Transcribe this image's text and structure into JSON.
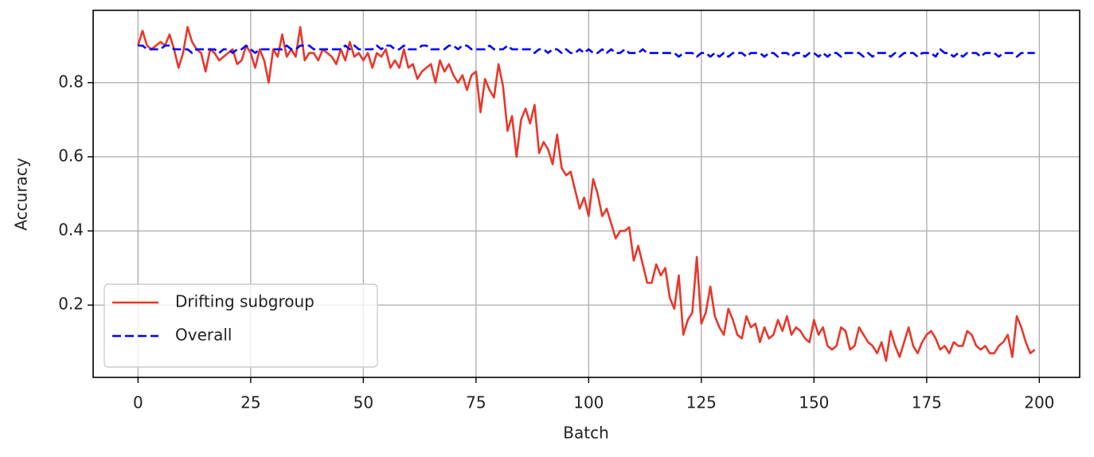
{
  "chart_data": {
    "type": "line",
    "xlabel": "Batch",
    "ylabel": "Accuracy",
    "x": [
      0,
      1,
      2,
      3,
      4,
      5,
      6,
      7,
      8,
      9,
      10,
      11,
      12,
      13,
      14,
      15,
      16,
      17,
      18,
      19,
      20,
      21,
      22,
      23,
      24,
      25,
      26,
      27,
      28,
      29,
      30,
      31,
      32,
      33,
      34,
      35,
      36,
      37,
      38,
      39,
      40,
      41,
      42,
      43,
      44,
      45,
      46,
      47,
      48,
      49,
      50,
      51,
      52,
      53,
      54,
      55,
      56,
      57,
      58,
      59,
      60,
      61,
      62,
      63,
      64,
      65,
      66,
      67,
      68,
      69,
      70,
      71,
      72,
      73,
      74,
      75,
      76,
      77,
      78,
      79,
      80,
      81,
      82,
      83,
      84,
      85,
      86,
      87,
      88,
      89,
      90,
      91,
      92,
      93,
      94,
      95,
      96,
      97,
      98,
      99,
      100,
      101,
      102,
      103,
      104,
      105,
      106,
      107,
      108,
      109,
      110,
      111,
      112,
      113,
      114,
      115,
      116,
      117,
      118,
      119,
      120,
      121,
      122,
      123,
      124,
      125,
      126,
      127,
      128,
      129,
      130,
      131,
      132,
      133,
      134,
      135,
      136,
      137,
      138,
      139,
      140,
      141,
      142,
      143,
      144,
      145,
      146,
      147,
      148,
      149,
      150,
      151,
      152,
      153,
      154,
      155,
      156,
      157,
      158,
      159,
      160,
      161,
      162,
      163,
      164,
      165,
      166,
      167,
      168,
      169,
      170,
      171,
      172,
      173,
      174,
      175,
      176,
      177,
      178,
      179,
      180,
      181,
      182,
      183,
      184,
      185,
      186,
      187,
      188,
      189,
      190,
      191,
      192,
      193,
      194,
      195,
      196,
      197,
      198,
      199
    ],
    "series": [
      {
        "name": "Drifting subgroup",
        "color": "#e8372b",
        "linestyle": "solid",
        "values": [
          0.9,
          0.94,
          0.9,
          0.89,
          0.9,
          0.91,
          0.9,
          0.93,
          0.89,
          0.84,
          0.88,
          0.95,
          0.91,
          0.89,
          0.88,
          0.83,
          0.89,
          0.88,
          0.86,
          0.87,
          0.88,
          0.89,
          0.85,
          0.86,
          0.9,
          0.88,
          0.84,
          0.89,
          0.86,
          0.8,
          0.89,
          0.87,
          0.93,
          0.87,
          0.89,
          0.87,
          0.95,
          0.86,
          0.88,
          0.88,
          0.86,
          0.89,
          0.88,
          0.87,
          0.85,
          0.89,
          0.86,
          0.91,
          0.87,
          0.88,
          0.86,
          0.88,
          0.84,
          0.88,
          0.87,
          0.89,
          0.84,
          0.86,
          0.84,
          0.89,
          0.84,
          0.85,
          0.81,
          0.83,
          0.84,
          0.85,
          0.8,
          0.86,
          0.83,
          0.85,
          0.82,
          0.8,
          0.82,
          0.78,
          0.82,
          0.83,
          0.72,
          0.81,
          0.78,
          0.76,
          0.85,
          0.79,
          0.67,
          0.71,
          0.6,
          0.7,
          0.73,
          0.69,
          0.74,
          0.61,
          0.64,
          0.62,
          0.58,
          0.66,
          0.57,
          0.55,
          0.56,
          0.51,
          0.46,
          0.49,
          0.44,
          0.54,
          0.5,
          0.44,
          0.46,
          0.42,
          0.38,
          0.4,
          0.4,
          0.41,
          0.32,
          0.36,
          0.31,
          0.26,
          0.26,
          0.31,
          0.28,
          0.3,
          0.22,
          0.19,
          0.28,
          0.12,
          0.16,
          0.18,
          0.33,
          0.15,
          0.18,
          0.25,
          0.17,
          0.14,
          0.12,
          0.19,
          0.16,
          0.12,
          0.11,
          0.17,
          0.14,
          0.15,
          0.1,
          0.14,
          0.11,
          0.12,
          0.16,
          0.13,
          0.17,
          0.12,
          0.14,
          0.13,
          0.11,
          0.1,
          0.16,
          0.12,
          0.14,
          0.09,
          0.08,
          0.09,
          0.14,
          0.13,
          0.08,
          0.09,
          0.14,
          0.12,
          0.1,
          0.09,
          0.07,
          0.1,
          0.05,
          0.13,
          0.09,
          0.06,
          0.1,
          0.14,
          0.09,
          0.07,
          0.1,
          0.12,
          0.13,
          0.11,
          0.08,
          0.09,
          0.07,
          0.1,
          0.09,
          0.09,
          0.13,
          0.12,
          0.09,
          0.08,
          0.09,
          0.07,
          0.07,
          0.09,
          0.1,
          0.12,
          0.06,
          0.17,
          0.14,
          0.1,
          0.07,
          0.08
        ]
      },
      {
        "name": "Overall",
        "color": "#0000ff",
        "linestyle": "dashed",
        "values": [
          0.9,
          0.9,
          0.89,
          0.89,
          0.89,
          0.89,
          0.9,
          0.9,
          0.89,
          0.89,
          0.89,
          0.89,
          0.88,
          0.89,
          0.89,
          0.89,
          0.89,
          0.89,
          0.88,
          0.89,
          0.89,
          0.88,
          0.89,
          0.89,
          0.9,
          0.89,
          0.88,
          0.89,
          0.89,
          0.89,
          0.89,
          0.89,
          0.89,
          0.9,
          0.89,
          0.89,
          0.9,
          0.9,
          0.9,
          0.89,
          0.89,
          0.89,
          0.89,
          0.89,
          0.89,
          0.89,
          0.9,
          0.89,
          0.9,
          0.89,
          0.89,
          0.89,
          0.89,
          0.9,
          0.89,
          0.9,
          0.9,
          0.89,
          0.89,
          0.9,
          0.89,
          0.89,
          0.89,
          0.9,
          0.9,
          0.89,
          0.89,
          0.89,
          0.89,
          0.9,
          0.9,
          0.89,
          0.9,
          0.9,
          0.89,
          0.89,
          0.89,
          0.89,
          0.9,
          0.89,
          0.89,
          0.89,
          0.9,
          0.89,
          0.89,
          0.89,
          0.89,
          0.89,
          0.88,
          0.89,
          0.89,
          0.88,
          0.89,
          0.89,
          0.88,
          0.89,
          0.88,
          0.88,
          0.89,
          0.88,
          0.89,
          0.88,
          0.88,
          0.89,
          0.88,
          0.89,
          0.88,
          0.88,
          0.89,
          0.88,
          0.88,
          0.88,
          0.89,
          0.88,
          0.88,
          0.88,
          0.88,
          0.88,
          0.88,
          0.88,
          0.87,
          0.88,
          0.88,
          0.88,
          0.87,
          0.88,
          0.88,
          0.87,
          0.88,
          0.87,
          0.88,
          0.87,
          0.88,
          0.88,
          0.88,
          0.87,
          0.88,
          0.88,
          0.88,
          0.87,
          0.88,
          0.88,
          0.87,
          0.88,
          0.88,
          0.87,
          0.88,
          0.88,
          0.87,
          0.88,
          0.88,
          0.87,
          0.88,
          0.87,
          0.88,
          0.88,
          0.87,
          0.88,
          0.88,
          0.88,
          0.88,
          0.87,
          0.88,
          0.87,
          0.88,
          0.88,
          0.88,
          0.87,
          0.88,
          0.87,
          0.88,
          0.88,
          0.88,
          0.87,
          0.88,
          0.88,
          0.88,
          0.87,
          0.89,
          0.88,
          0.88,
          0.87,
          0.88,
          0.87,
          0.88,
          0.88,
          0.88,
          0.87,
          0.88,
          0.88,
          0.88,
          0.87,
          0.88,
          0.88,
          0.88,
          0.87,
          0.88,
          0.88,
          0.88,
          0.88
        ]
      }
    ],
    "xlim": [
      -9.95,
      208.95
    ],
    "xticks": [
      0,
      25,
      50,
      75,
      100,
      125,
      150,
      175,
      200
    ],
    "ylim": [
      0.005,
      0.995
    ],
    "yticks": [
      0.2,
      0.4,
      0.6,
      0.8
    ],
    "grid": true,
    "legend": "lower left"
  }
}
